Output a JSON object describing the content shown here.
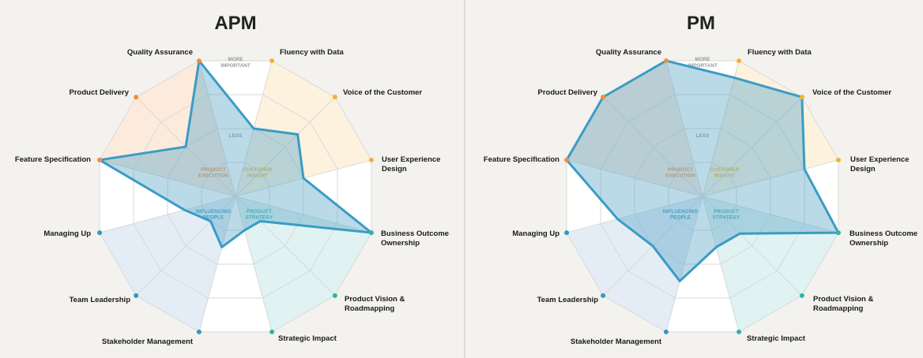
{
  "colors": {
    "execution": "#f08c3c",
    "insight": "#f2b233",
    "strategy": "#2fb5a6",
    "people": "#2f9ac2",
    "profile_fill": "#5aa8c8",
    "profile_stroke": "#3a9cc4",
    "execution_wedge": "#fbe7d6",
    "insight_wedge": "#fcf0d8",
    "strategy_wedge": "#daf0ee",
    "people_wedge": "#dfe9f5"
  },
  "ring_labels": {
    "more": [
      "MORE",
      "IMPORTANT"
    ],
    "less": "LESS"
  },
  "categories": [
    {
      "key": "execution",
      "lines": [
        "PRODUCT",
        "EXECUTION"
      ]
    },
    {
      "key": "insight",
      "lines": [
        "CUSTOMER",
        "INSIGHT"
      ]
    },
    {
      "key": "strategy",
      "lines": [
        "PRODUCT",
        "STRATEGY"
      ]
    },
    {
      "key": "people",
      "lines": [
        "INFLUENCING",
        "PEOPLE"
      ]
    }
  ],
  "axes": [
    {
      "name": "Quality Assurance",
      "category": "execution"
    },
    {
      "name": "Fluency with Data",
      "category": "insight"
    },
    {
      "name": "Voice of the Customer",
      "category": "insight"
    },
    {
      "name": "User Experience Design",
      "category": "insight"
    },
    {
      "name": "Business Outcome Ownership",
      "category": "strategy"
    },
    {
      "name": "Product Vision & Roadmapping",
      "category": "strategy"
    },
    {
      "name": "Strategic Impact",
      "category": "strategy"
    },
    {
      "name": "Stakeholder Management",
      "category": "people"
    },
    {
      "name": "Team Leadership",
      "category": "people"
    },
    {
      "name": "Managing Up",
      "category": "people"
    },
    {
      "name": "Feature Specification",
      "category": "execution"
    },
    {
      "name": "Product Delivery",
      "category": "execution"
    }
  ],
  "chart_data": [
    {
      "type": "radar",
      "title": "APM",
      "scale_max": 4,
      "grid": true,
      "categories": [
        "Quality Assurance",
        "Fluency with Data",
        "Voice of the Customer",
        "User Experience Design",
        "Business Outcome Ownership",
        "Product Vision & Roadmapping",
        "Strategic Impact",
        "Stakeholder Management",
        "Team Leadership",
        "Managing Up",
        "Feature Specification",
        "Product Delivery"
      ],
      "values": [
        4,
        2,
        2.5,
        2,
        4,
        1,
        1,
        1.5,
        1,
        1.5,
        4,
        2
      ]
    },
    {
      "type": "radar",
      "title": "PM",
      "scale_max": 4,
      "grid": true,
      "categories": [
        "Quality Assurance",
        "Fluency with Data",
        "Voice of the Customer",
        "User Experience Design",
        "Business Outcome Ownership",
        "Product Vision & Roadmapping",
        "Strategic Impact",
        "Stakeholder Management",
        "Team Leadership",
        "Managing Up",
        "Feature Specification",
        "Product Delivery"
      ],
      "values": [
        4,
        3.5,
        4,
        3,
        4,
        1.5,
        1.5,
        2.5,
        2,
        2.5,
        4,
        4
      ]
    }
  ]
}
